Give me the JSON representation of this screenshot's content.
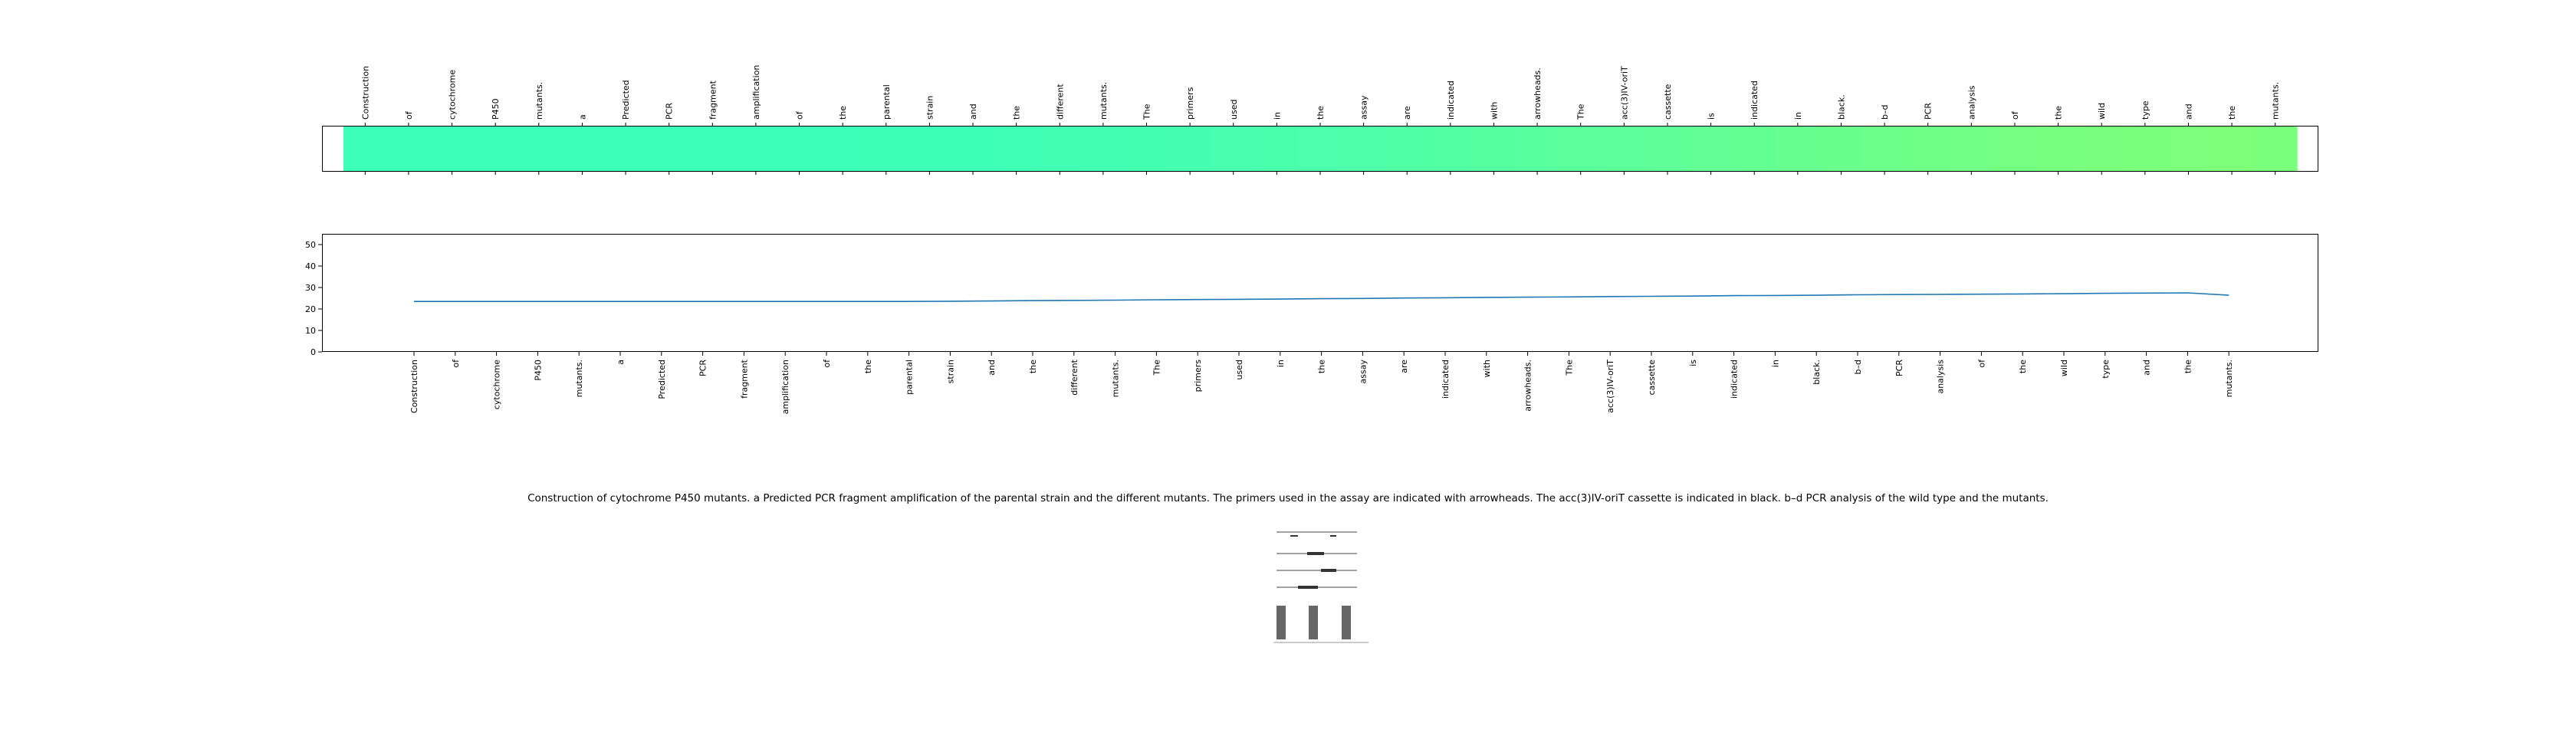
{
  "tokens": [
    "Construction",
    "of",
    "cytochrome",
    "P450",
    "mutants.",
    "a",
    "Predicted",
    "PCR",
    "fragment",
    "amplification",
    "of",
    "the",
    "parental",
    "strain",
    "and",
    "the",
    "different",
    "mutants.",
    "The",
    "primers",
    "used",
    "in",
    "the",
    "assay",
    "are",
    "indicated",
    "with",
    "arrowheads.",
    "The",
    "acc(3)IV-oriT",
    "cassette",
    "is",
    "indicated",
    "in",
    "black.",
    "b–d",
    "PCR",
    "analysis",
    "of",
    "the",
    "wild",
    "type",
    "and",
    "the",
    "mutants."
  ],
  "caption": "Construction of cytochrome P450 mutants. a Predicted PCR fragment amplification of the parental strain and the different mutants. The primers used in the assay are indicated with arrowheads. The acc(3)IV-oriT cassette is indicated in black. b–d PCR analysis of the wild type and the mutants.",
  "chart_data": [
    {
      "type": "heatmap",
      "x_tick_labels_position": "top",
      "color_start": "#3cffb9",
      "color_end": "#7dff7a",
      "values": [
        0.0,
        0.0,
        0.0,
        0.0,
        0.0,
        0.0,
        0.0,
        0.0,
        0.0,
        0.0,
        0.0,
        0.0,
        0.01,
        0.02,
        0.03,
        0.05,
        0.07,
        0.09,
        0.11,
        0.14,
        0.17,
        0.2,
        0.23,
        0.26,
        0.3,
        0.34,
        0.38,
        0.42,
        0.46,
        0.5,
        0.54,
        0.58,
        0.62,
        0.66,
        0.7,
        0.74,
        0.78,
        0.82,
        0.86,
        0.9,
        0.93,
        0.96,
        0.99,
        1.0,
        0.96
      ]
    },
    {
      "type": "line",
      "color": "#1f77b4",
      "y_ticks": [
        0,
        10,
        20,
        30,
        40,
        50
      ],
      "ylim": [
        0,
        55
      ],
      "x_tick_labels_position": "bottom",
      "values": [
        23.5,
        23.5,
        23.5,
        23.5,
        23.5,
        23.5,
        23.5,
        23.5,
        23.5,
        23.5,
        23.5,
        23.5,
        23.5,
        23.6,
        23.7,
        23.9,
        24.0,
        24.1,
        24.3,
        24.4,
        24.5,
        24.6,
        24.8,
        24.9,
        25.1,
        25.2,
        25.4,
        25.5,
        25.6,
        25.8,
        25.9,
        26.0,
        26.2,
        26.3,
        26.4,
        26.6,
        26.7,
        26.8,
        26.9,
        27.0,
        27.1,
        27.3,
        27.4,
        27.5,
        26.4
      ]
    }
  ]
}
